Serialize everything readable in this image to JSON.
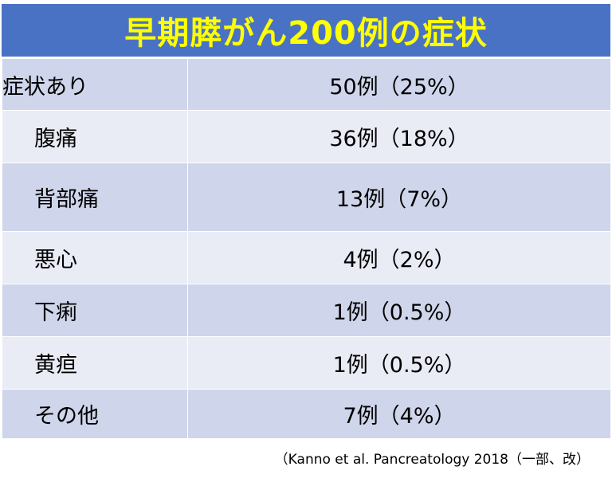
{
  "title": "早期膵がん200例の症状",
  "rows": [
    {
      "label": "症状あり",
      "value": "50例（25%）"
    },
    {
      "label": "腹痛",
      "value": "36例（18%）"
    },
    {
      "label": "背部痛",
      "value": "13例（7%）"
    },
    {
      "label": "悪心",
      "value": "4例（2%）"
    },
    {
      "label": "下痢",
      "value": "1例（0.5%）"
    },
    {
      "label": "黄疸",
      "value": "1例（0.5%）"
    },
    {
      "label": "その他",
      "value": "7例（4%）"
    }
  ],
  "citation": "（Kanno et al. Pancreatology 2018（一部、改）",
  "colors": {
    "title_bg": "#4a72c4",
    "title_text": "#ffff00",
    "row_dark": "#cfd5ea",
    "row_light": "#e9ebf5"
  }
}
